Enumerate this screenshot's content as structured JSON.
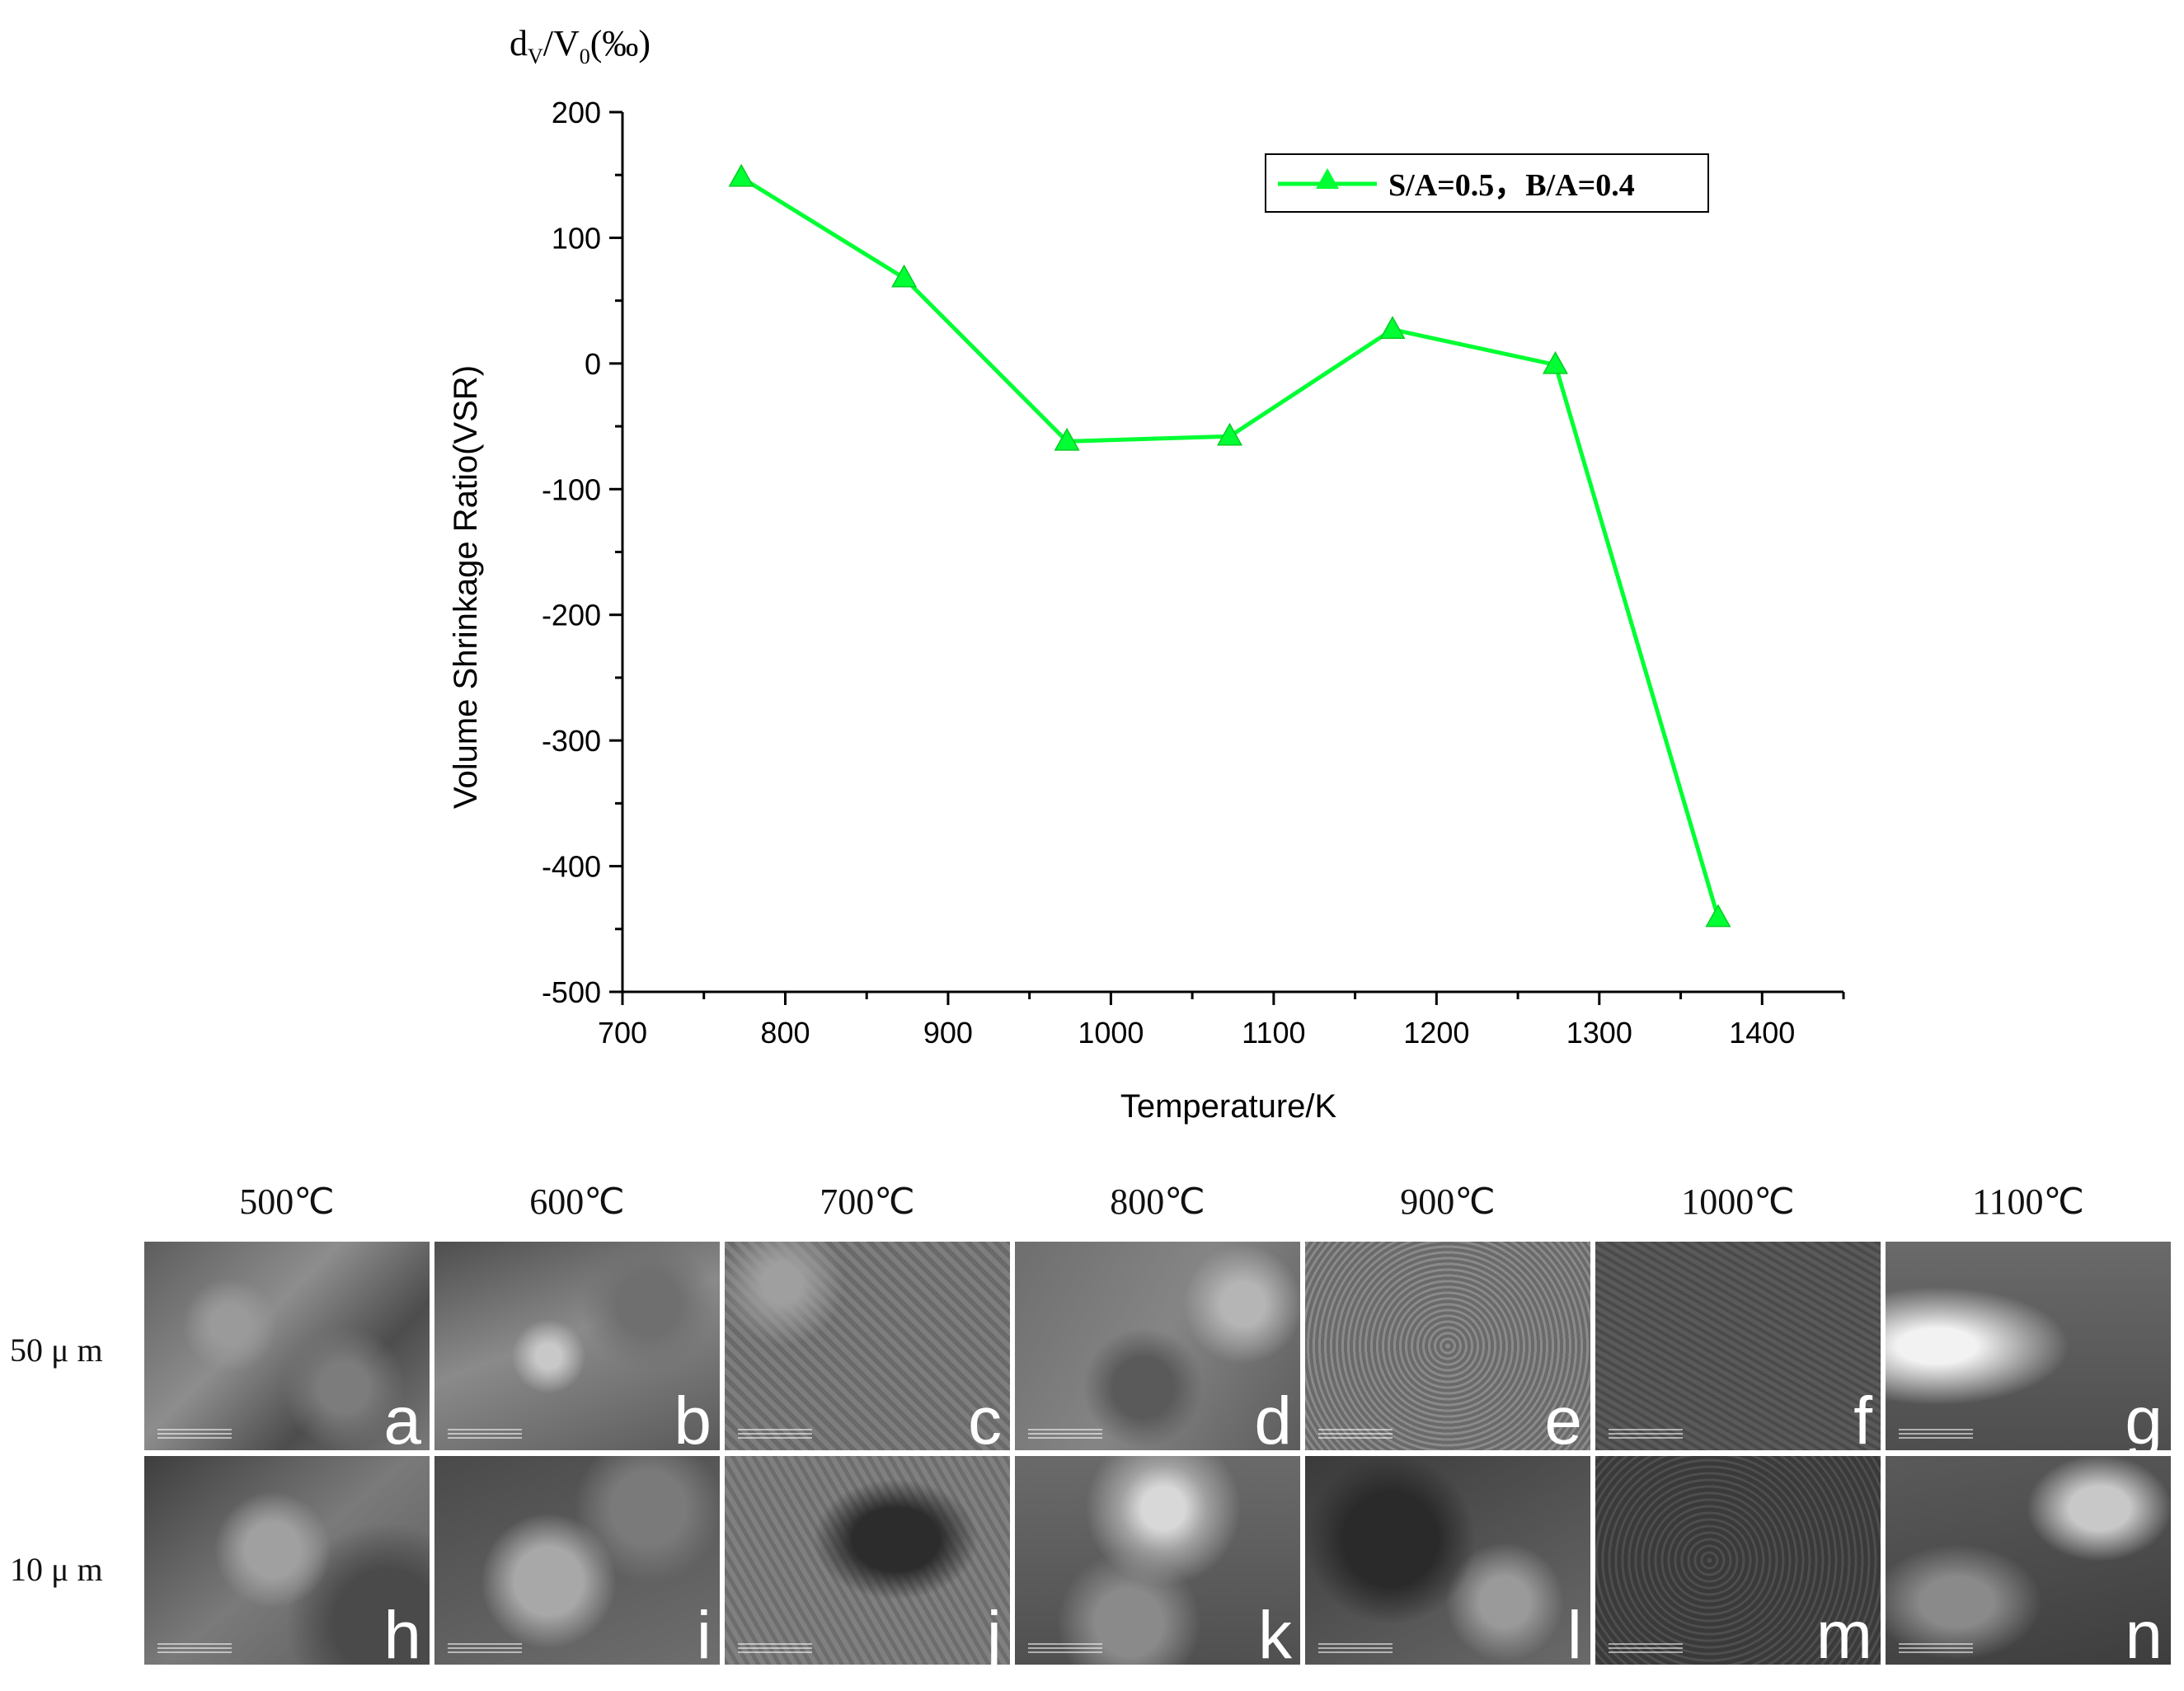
{
  "chart_data": {
    "type": "line",
    "title": "",
    "top_label": {
      "main": "d",
      "sub1": "V",
      "mid": "/V",
      "sub2": "0",
      "tail": "(‰)"
    },
    "xlabel": "Temperature/K",
    "ylabel": "Volume Shrinkage Ratio(VSR)",
    "xlim": [
      700,
      1450
    ],
    "ylim": [
      -500,
      200
    ],
    "xticks": [
      700,
      800,
      900,
      1000,
      1100,
      1200,
      1300,
      1400
    ],
    "yticks": [
      200,
      100,
      0,
      -100,
      -200,
      -300,
      -400,
      -500
    ],
    "grid": false,
    "legend_position": "top-right",
    "series": [
      {
        "name": "S/A=0.5，B/A=0.4",
        "color": "#00ff33",
        "marker": "triangle",
        "x": [
          773,
          873,
          973,
          1073,
          1173,
          1273,
          1373
        ],
        "y": [
          148,
          68,
          -62,
          -58,
          27,
          -1,
          -441
        ]
      }
    ]
  },
  "sem_panel": {
    "temperatures": [
      "500℃",
      "600℃",
      "700℃",
      "800℃",
      "900℃",
      "1000℃",
      "1100℃"
    ],
    "scales": [
      "50 μ m",
      "10 μ m"
    ],
    "rows": [
      [
        "a",
        "b",
        "c",
        "d",
        "e",
        "f",
        "g"
      ],
      [
        "h",
        "i",
        "j",
        "k",
        "l",
        "m",
        "n"
      ]
    ]
  }
}
